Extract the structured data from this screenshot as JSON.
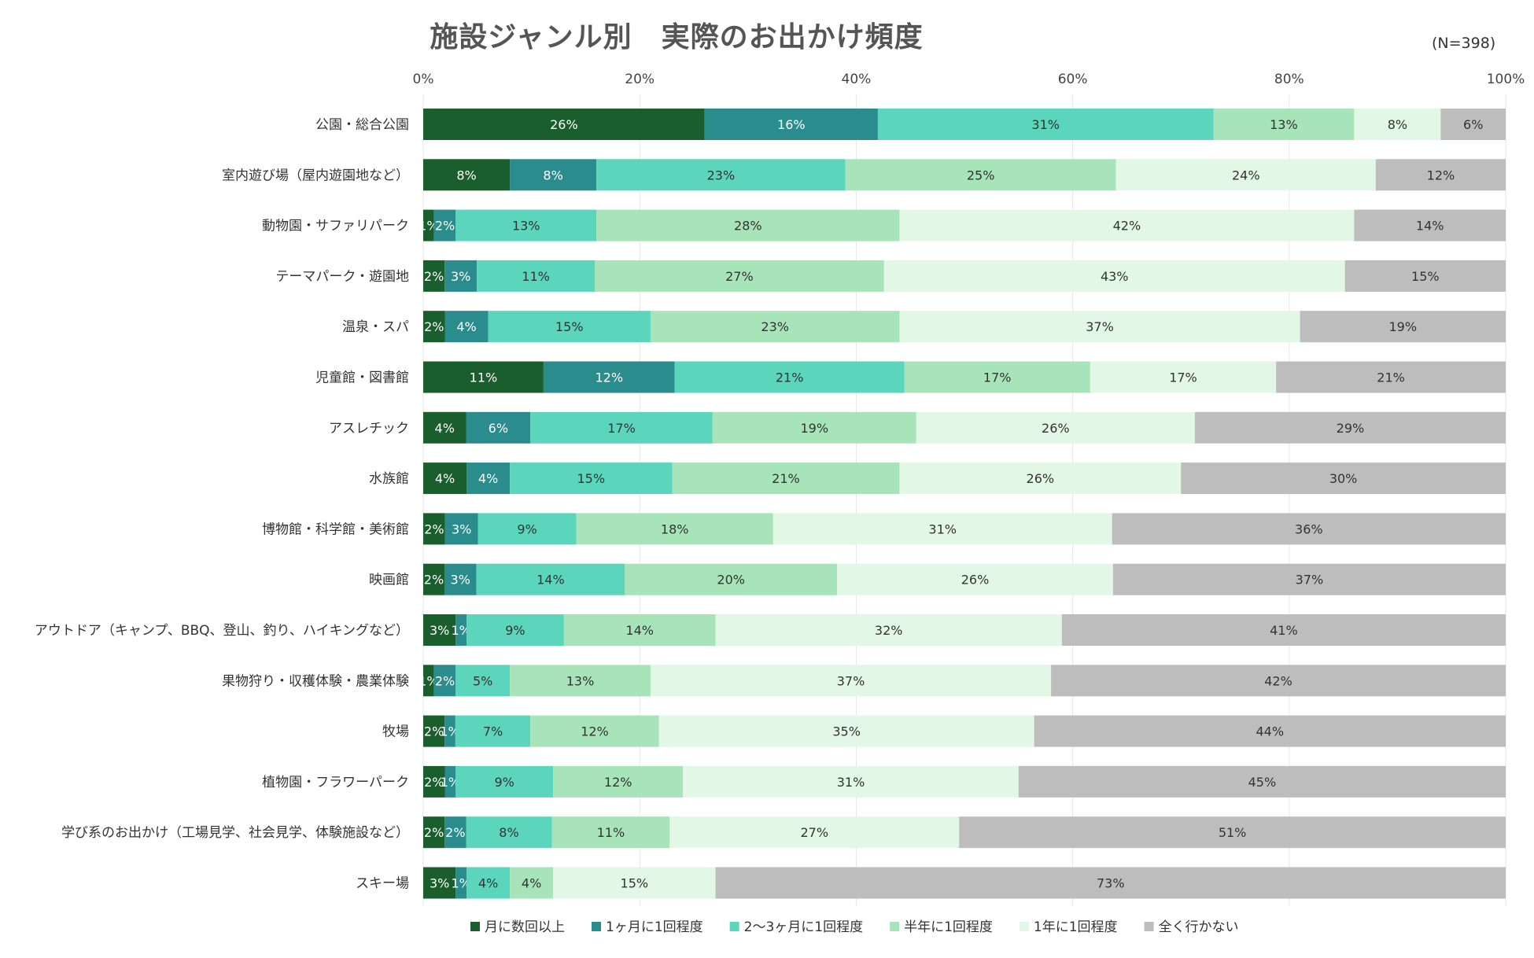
{
  "colors": {
    "月に数回以上": "#1b5e2d",
    "1ヶ月に1回程度": "#2a8c8c",
    "2〜3ヶ月に1回程度": "#5bd6bc",
    "半年に1回程度": "#a8e4b9",
    "1年に1回程度": "#e3f7e6",
    "全く行かない": "#bdbdbd"
  },
  "chart_data": {
    "type": "bar",
    "orientation": "horizontal",
    "stacked": true,
    "title": "施設ジャンル別　実際のお出かけ頻度",
    "note": "(N=398)",
    "xlim": [
      0,
      100
    ],
    "xticks": [
      "0%",
      "20%",
      "40%",
      "60%",
      "80%",
      "100%"
    ],
    "legend_position": "bottom",
    "categories": [
      "公園・総合公園",
      "室内遊び場（屋内遊園地など）",
      "動物園・サファリパーク",
      "テーマパーク・遊園地",
      "温泉・スパ",
      "児童館・図書館",
      "アスレチック",
      "水族館",
      "博物館・科学館・美術館",
      "映画館",
      "アウトドア（キャンプ、BBQ、登山、釣り、ハイキングなど）",
      "果物狩り・収穫体験・農業体験",
      "牧場",
      "植物園・フラワーパーク",
      "学び系のお出かけ（工場見学、社会見学、体験施設など）",
      "スキー場"
    ],
    "series": [
      {
        "name": "月に数回以上",
        "values": [
          26,
          8,
          1,
          2,
          2,
          11,
          4,
          4,
          2,
          2,
          3,
          1,
          2,
          2,
          2,
          3
        ]
      },
      {
        "name": "1ヶ月に1回程度",
        "values": [
          16,
          8,
          2,
          3,
          4,
          12,
          6,
          4,
          3,
          3,
          1,
          2,
          1,
          1,
          2,
          1
        ]
      },
      {
        "name": "2〜3ヶ月に1回程度",
        "values": [
          31,
          23,
          13,
          11,
          15,
          21,
          17,
          15,
          9,
          14,
          9,
          5,
          7,
          9,
          8,
          4
        ]
      },
      {
        "name": "半年に1回程度",
        "values": [
          13,
          25,
          28,
          27,
          23,
          17,
          19,
          21,
          18,
          20,
          14,
          13,
          12,
          12,
          11,
          4
        ]
      },
      {
        "name": "1年に1回程度",
        "values": [
          8,
          24,
          42,
          43,
          37,
          17,
          26,
          26,
          31,
          26,
          32,
          37,
          35,
          31,
          27,
          15
        ]
      },
      {
        "name": "全く行かない",
        "values": [
          6,
          12,
          14,
          15,
          19,
          21,
          29,
          30,
          36,
          37,
          41,
          42,
          44,
          45,
          51,
          73
        ]
      }
    ]
  }
}
